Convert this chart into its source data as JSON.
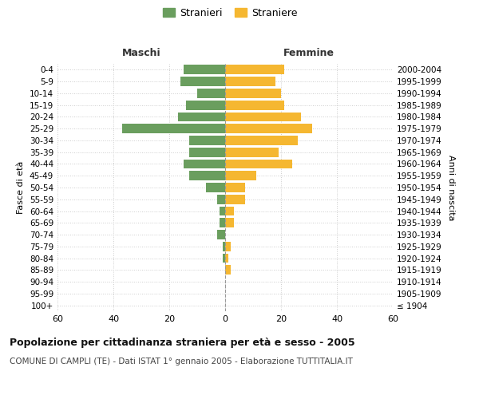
{
  "age_groups": [
    "100+",
    "95-99",
    "90-94",
    "85-89",
    "80-84",
    "75-79",
    "70-74",
    "65-69",
    "60-64",
    "55-59",
    "50-54",
    "45-49",
    "40-44",
    "35-39",
    "30-34",
    "25-29",
    "20-24",
    "15-19",
    "10-14",
    "5-9",
    "0-4"
  ],
  "birth_years": [
    "≤ 1904",
    "1905-1909",
    "1910-1914",
    "1915-1919",
    "1920-1924",
    "1925-1929",
    "1930-1934",
    "1935-1939",
    "1940-1944",
    "1945-1949",
    "1950-1954",
    "1955-1959",
    "1960-1964",
    "1965-1969",
    "1970-1974",
    "1975-1979",
    "1980-1984",
    "1985-1989",
    "1990-1994",
    "1995-1999",
    "2000-2004"
  ],
  "maschi": [
    0,
    0,
    0,
    0,
    1,
    1,
    3,
    2,
    2,
    3,
    7,
    13,
    15,
    13,
    13,
    37,
    17,
    14,
    10,
    16,
    15
  ],
  "femmine": [
    0,
    0,
    0,
    2,
    1,
    2,
    0,
    3,
    3,
    7,
    7,
    11,
    24,
    19,
    26,
    31,
    27,
    21,
    20,
    18,
    21
  ],
  "color_maschi": "#6a9e5e",
  "color_femmine": "#f5b731",
  "title": "Popolazione per cittadinanza straniera per età e sesso - 2005",
  "subtitle": "COMUNE DI CAMPLI (TE) - Dati ISTAT 1° gennaio 2005 - Elaborazione TUTTITALIA.IT",
  "legend_maschi": "Stranieri",
  "legend_femmine": "Straniere",
  "xlabel_left": "Maschi",
  "xlabel_right": "Femmine",
  "ylabel_left": "Fasce di età",
  "ylabel_right": "Anni di nascita",
  "xlim": 60,
  "background_color": "#ffffff",
  "grid_color": "#cccccc"
}
